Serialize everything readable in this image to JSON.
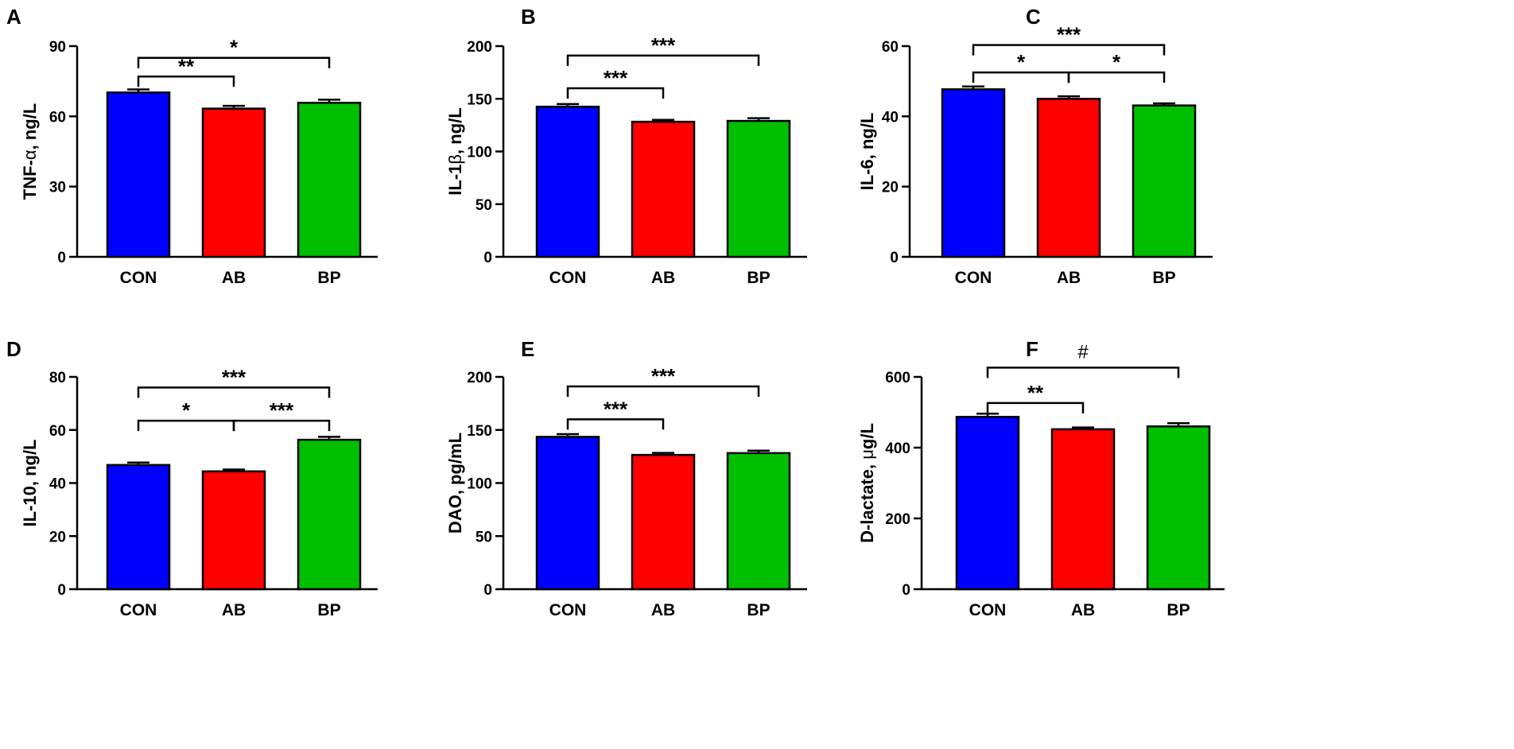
{
  "colors": {
    "CON": "#0000ff",
    "AB": "#ff0000",
    "BP": "#00bf00",
    "axis": "#000000"
  },
  "chart_data": [
    {
      "type": "bar",
      "panel": "A",
      "ylabel_main": "TNF-",
      "ylabel_greek": "α",
      "ylabel_unit": ", ng/L",
      "categories": [
        "CON",
        "AB",
        "BP"
      ],
      "values": [
        70.2,
        63.3,
        65.8
      ],
      "errors": [
        1.3,
        1.2,
        1.3
      ],
      "ylim": [
        0,
        90
      ],
      "yticks": [
        0,
        30,
        60,
        90
      ],
      "ytick_labels": [
        "0",
        "30",
        "60",
        "90"
      ],
      "brackets": [
        {
          "from": 0,
          "to": 1,
          "y": 77,
          "label": "**"
        },
        {
          "from": 0,
          "to": 2,
          "y": 85,
          "label": "*"
        }
      ]
    },
    {
      "type": "bar",
      "panel": "B",
      "ylabel_main": "IL-1",
      "ylabel_greek": "β",
      "ylabel_unit": ", ng/L",
      "categories": [
        "CON",
        "AB",
        "BP"
      ],
      "values": [
        142.5,
        128.2,
        129.0
      ],
      "errors": [
        2.5,
        1.8,
        2.6
      ],
      "ylim": [
        0,
        200
      ],
      "yticks": [
        0,
        50,
        100,
        150,
        200
      ],
      "ytick_labels": [
        "0",
        "50",
        "100",
        "150",
        "200"
      ],
      "brackets": [
        {
          "from": 0,
          "to": 1,
          "y": 160,
          "label": "***"
        },
        {
          "from": 0,
          "to": 2,
          "y": 191,
          "label": "***"
        }
      ]
    },
    {
      "type": "bar",
      "panel": "C",
      "ylabel_main": "IL-6, ng/L",
      "ylabel_greek": "",
      "ylabel_unit": "",
      "categories": [
        "CON",
        "AB",
        "BP"
      ],
      "values": [
        47.7,
        45.0,
        43.1
      ],
      "errors": [
        0.8,
        0.7,
        0.6
      ],
      "ylim": [
        0,
        60
      ],
      "yticks": [
        0,
        20,
        40,
        60
      ],
      "ytick_labels": [
        "0",
        "20",
        "40",
        "60"
      ],
      "brackets": [
        {
          "from": 0,
          "to": 1,
          "y": 52.5,
          "label": "*"
        },
        {
          "from": 1,
          "to": 2,
          "y": 52.5,
          "label": "*"
        },
        {
          "from": 0,
          "to": 2,
          "y": 60.3,
          "label": "***"
        }
      ]
    },
    {
      "type": "bar",
      "panel": "D",
      "ylabel_main": "IL-10, ng/L",
      "ylabel_greek": "",
      "ylabel_unit": "",
      "categories": [
        "CON",
        "AB",
        "BP"
      ],
      "values": [
        46.8,
        44.4,
        56.3
      ],
      "errors": [
        0.9,
        0.7,
        1.1
      ],
      "ylim": [
        0,
        80
      ],
      "yticks": [
        0,
        20,
        40,
        60,
        80
      ],
      "ytick_labels": [
        "0",
        "20",
        "40",
        "60",
        "80"
      ],
      "brackets": [
        {
          "from": 0,
          "to": 1,
          "y": 63.5,
          "label": "*"
        },
        {
          "from": 1,
          "to": 2,
          "y": 63.5,
          "label": "***"
        },
        {
          "from": 0,
          "to": 2,
          "y": 76,
          "label": "***"
        }
      ]
    },
    {
      "type": "bar",
      "panel": "E",
      "ylabel_main": "DAO, pg/mL",
      "ylabel_greek": "",
      "ylabel_unit": "",
      "categories": [
        "CON",
        "AB",
        "BP"
      ],
      "values": [
        143.5,
        126.5,
        128.2
      ],
      "errors": [
        2.6,
        1.9,
        2.3
      ],
      "ylim": [
        0,
        200
      ],
      "yticks": [
        0,
        50,
        100,
        150,
        200
      ],
      "ytick_labels": [
        "0",
        "50",
        "100",
        "150",
        "200"
      ],
      "brackets": [
        {
          "from": 0,
          "to": 1,
          "y": 160,
          "label": "***"
        },
        {
          "from": 0,
          "to": 2,
          "y": 191,
          "label": "***"
        }
      ]
    },
    {
      "type": "bar",
      "panel": "F",
      "ylabel_main": "D-lactate, ",
      "ylabel_greek": "μ",
      "ylabel_unit": "g/L",
      "categories": [
        "CON",
        "AB",
        "BP"
      ],
      "values": [
        487,
        452,
        460
      ],
      "errors": [
        9,
        5,
        9
      ],
      "ylim": [
        0,
        600
      ],
      "yticks": [
        0,
        200,
        400,
        600
      ],
      "ytick_labels": [
        "0",
        "200",
        "400",
        "600"
      ],
      "brackets": [
        {
          "from": 0,
          "to": 1,
          "y": 526,
          "label": "**",
          "hash": false
        },
        {
          "from": 0,
          "to": 2,
          "y": 626,
          "label": "#",
          "hash": true
        }
      ]
    }
  ]
}
